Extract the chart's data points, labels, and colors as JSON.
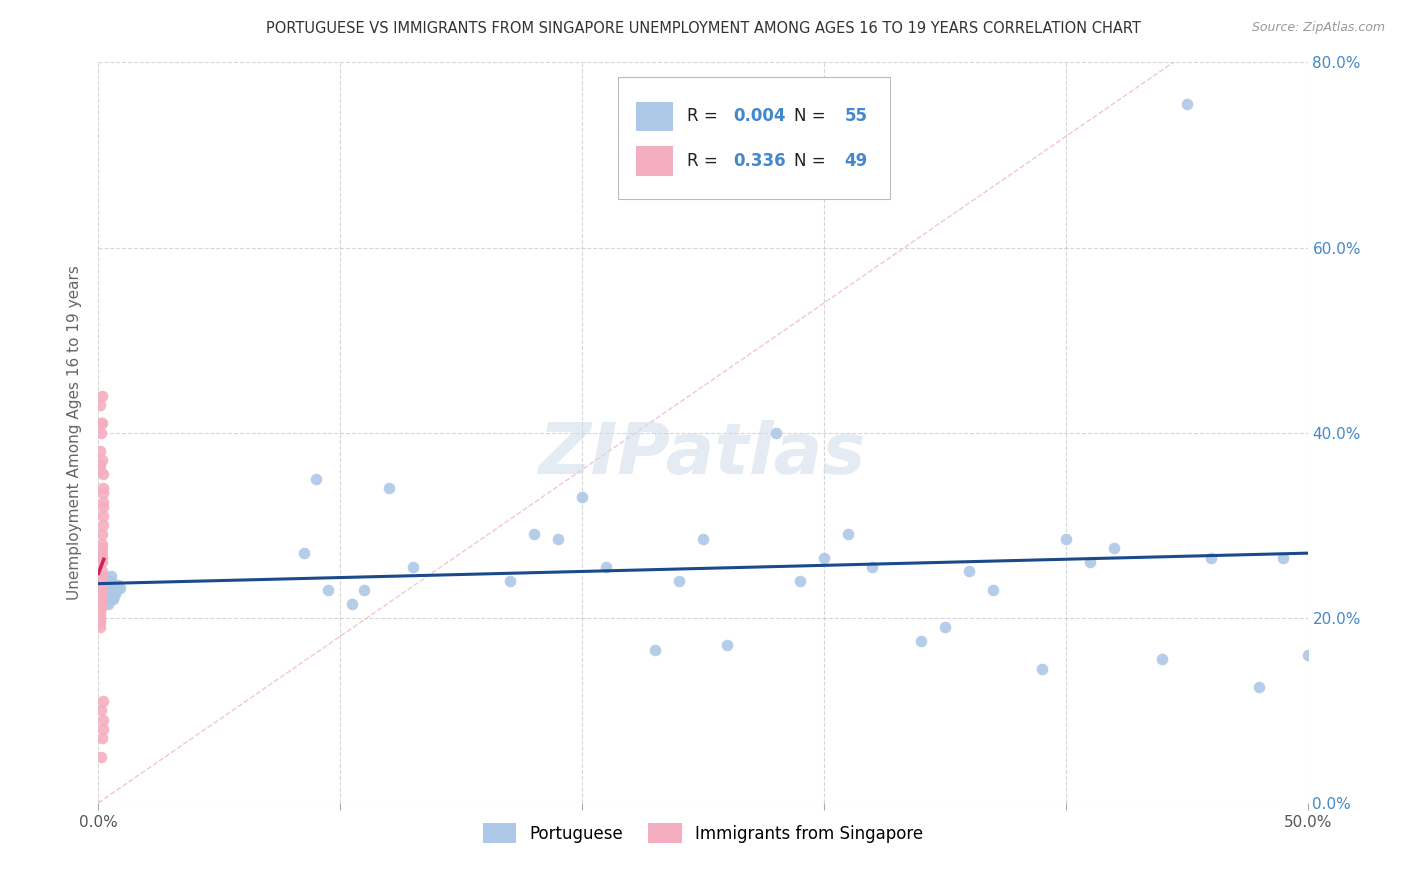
{
  "title": "PORTUGUESE VS IMMIGRANTS FROM SINGAPORE UNEMPLOYMENT AMONG AGES 16 TO 19 YEARS CORRELATION CHART",
  "source": "Source: ZipAtlas.com",
  "ylabel": "Unemployment Among Ages 16 to 19 years",
  "xlim": [
    0.0,
    0.5
  ],
  "ylim": [
    0.0,
    0.8
  ],
  "xticks": [
    0.0,
    0.1,
    0.2,
    0.3,
    0.4,
    0.5
  ],
  "xtick_labels": [
    "0.0%",
    "",
    "",
    "",
    "",
    "50.0%"
  ],
  "yticks": [
    0.0,
    0.2,
    0.4,
    0.6,
    0.8
  ],
  "ytick_labels_right": [
    "0.0%",
    "20.0%",
    "40.0%",
    "60.0%",
    "80.0%"
  ],
  "legend1_label": "Portuguese",
  "legend2_label": "Immigrants from Singapore",
  "R1": "0.004",
  "N1": "55",
  "R2": "0.336",
  "N2": "49",
  "color_blue": "#adc8e6",
  "color_pink": "#f5aec0",
  "color_trend_blue": "#1a4a8a",
  "color_trend_pink": "#cc2255",
  "color_diag": "#f0b8c8",
  "right_tick_color": "#4488cc",
  "legend_num_color": "#4488cc",
  "background_color": "#ffffff",
  "grid_color": "#cccccc",
  "title_color": "#333333",
  "axis_label_color": "#666666",
  "watermark_color": "#d0dce8",
  "marker_size": 70,
  "portuguese_x": [
    0.005,
    0.006,
    0.007,
    0.004,
    0.008,
    0.005,
    0.006,
    0.007,
    0.004,
    0.009,
    0.006,
    0.007,
    0.003,
    0.008,
    0.005,
    0.006,
    0.004,
    0.007,
    0.005,
    0.006,
    0.12,
    0.09,
    0.085,
    0.095,
    0.13,
    0.11,
    0.105,
    0.18,
    0.2,
    0.19,
    0.21,
    0.17,
    0.25,
    0.24,
    0.26,
    0.23,
    0.3,
    0.32,
    0.31,
    0.28,
    0.29,
    0.35,
    0.36,
    0.37,
    0.34,
    0.4,
    0.42,
    0.41,
    0.39,
    0.45,
    0.46,
    0.44,
    0.49,
    0.5,
    0.48
  ],
  "portuguese_y": [
    0.245,
    0.22,
    0.23,
    0.215,
    0.235,
    0.24,
    0.225,
    0.228,
    0.218,
    0.232,
    0.221,
    0.226,
    0.229,
    0.233,
    0.237,
    0.224,
    0.219,
    0.231,
    0.227,
    0.223,
    0.34,
    0.35,
    0.27,
    0.23,
    0.255,
    0.23,
    0.215,
    0.29,
    0.33,
    0.285,
    0.255,
    0.24,
    0.285,
    0.24,
    0.17,
    0.165,
    0.265,
    0.255,
    0.29,
    0.4,
    0.24,
    0.19,
    0.25,
    0.23,
    0.175,
    0.285,
    0.275,
    0.26,
    0.145,
    0.755,
    0.265,
    0.155,
    0.265,
    0.16,
    0.125
  ],
  "singapore_x": [
    0.0005,
    0.0006,
    0.0007,
    0.0004,
    0.0008,
    0.0005,
    0.0006,
    0.0004,
    0.0007,
    0.0008,
    0.0009,
    0.001,
    0.001,
    0.0011,
    0.0012,
    0.0011,
    0.0012,
    0.0013,
    0.0012,
    0.0011,
    0.0013,
    0.0014,
    0.0014,
    0.0015,
    0.0015,
    0.0016,
    0.0017,
    0.0016,
    0.0017,
    0.0018,
    0.0018,
    0.0019,
    0.0019,
    0.002,
    0.001,
    0.0008,
    0.0009,
    0.0007,
    0.0006,
    0.0005,
    0.0015,
    0.0013,
    0.0014,
    0.0012,
    0.0016,
    0.002,
    0.0018,
    0.0011,
    0.0017
  ],
  "singapore_y": [
    0.2,
    0.21,
    0.195,
    0.205,
    0.215,
    0.19,
    0.2,
    0.195,
    0.205,
    0.22,
    0.215,
    0.225,
    0.23,
    0.235,
    0.24,
    0.22,
    0.225,
    0.245,
    0.23,
    0.21,
    0.25,
    0.26,
    0.265,
    0.27,
    0.275,
    0.28,
    0.3,
    0.29,
    0.31,
    0.32,
    0.325,
    0.34,
    0.335,
    0.355,
    0.41,
    0.38,
    0.4,
    0.36,
    0.365,
    0.43,
    0.44,
    0.41,
    0.37,
    0.05,
    0.07,
    0.08,
    0.09,
    0.1,
    0.11
  ]
}
